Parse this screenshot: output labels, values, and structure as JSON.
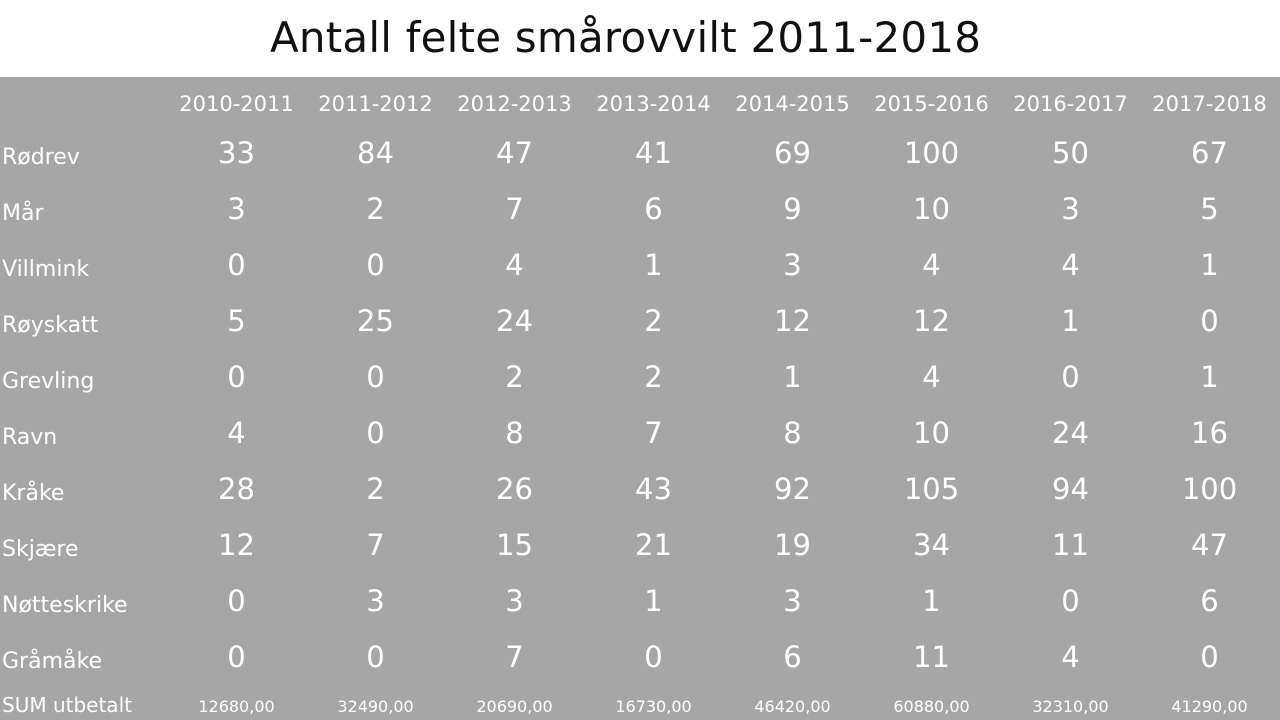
{
  "title": "Antall felte smårovvilt 2011-2018",
  "years": [
    "2010-2011",
    "2011-2012",
    "2012-2013",
    "2013-2014",
    "2014-2015",
    "2015-2016",
    "2016-2017",
    "2017-2018"
  ],
  "rows": [
    {
      "label": "Rødrev",
      "values": [
        "33",
        "84",
        "47",
        "41",
        "69",
        "100",
        "50",
        "67"
      ]
    },
    {
      "label": "Mår",
      "values": [
        "3",
        "2",
        "7",
        "6",
        "9",
        "10",
        "3",
        "5"
      ]
    },
    {
      "label": "Villmink",
      "values": [
        "0",
        "0",
        "4",
        "1",
        "3",
        "4",
        "4",
        "1"
      ]
    },
    {
      "label": "Røyskatt",
      "values": [
        "5",
        "25",
        "24",
        "2",
        "12",
        "12",
        "1",
        "0"
      ]
    },
    {
      "label": "Grevling",
      "values": [
        "0",
        "0",
        "2",
        "2",
        "1",
        "4",
        "0",
        "1"
      ]
    },
    {
      "label": "Ravn",
      "values": [
        "4",
        "0",
        "8",
        "7",
        "8",
        "10",
        "24",
        "16"
      ]
    },
    {
      "label": "Kråke",
      "values": [
        "28",
        "2",
        "26",
        "43",
        "92",
        "105",
        "94",
        "100"
      ]
    },
    {
      "label": "Skjære",
      "values": [
        "12",
        "7",
        "15",
        "21",
        "19",
        "34",
        "11",
        "47"
      ]
    },
    {
      "label": "Nøtteskrike",
      "values": [
        "0",
        "3",
        "3",
        "1",
        "3",
        "1",
        "0",
        "6"
      ]
    },
    {
      "label": "Gråmåke",
      "values": [
        "0",
        "0",
        "7",
        "0",
        "6",
        "11",
        "4",
        "0"
      ]
    }
  ],
  "sum_row": {
    "label": "SUM utbetalt",
    "values": [
      "12680,00",
      "32490,00",
      "20690,00",
      "16730,00",
      "46420,00",
      "60880,00",
      "32310,00",
      "41290,00"
    ]
  },
  "colors": {
    "panel_background": "#a6a6a6",
    "table_text": "#ffffff",
    "title_text": "#111111"
  }
}
